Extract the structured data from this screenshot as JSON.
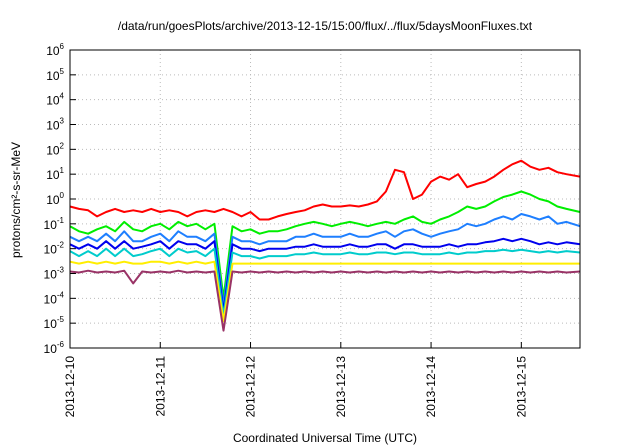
{
  "chart_data": {
    "type": "line",
    "title": "/data/run/goesPlots/archive/2013-12-15/15:00/flux/../flux/5daysMoonFluxes.txt",
    "xlabel": "Coordinated Universal Time (UTC)",
    "ylabel": "protons/cm²-s-sr-MeV",
    "yscale": "log",
    "ylim": [
      1e-06,
      1000000.0
    ],
    "xlim": [
      0,
      5.65
    ],
    "grid": true,
    "legend": "none",
    "x_ticks": [
      {
        "x": 0,
        "label": "2013-12-10"
      },
      {
        "x": 1,
        "label": "2013-12-11"
      },
      {
        "x": 2,
        "label": "2013-12-12"
      },
      {
        "x": 3,
        "label": "2013-12-13"
      },
      {
        "x": 4,
        "label": "2013-12-14"
      },
      {
        "x": 5,
        "label": "2013-12-15"
      }
    ],
    "y_ticks": [
      {
        "exp": -6,
        "label": "10",
        "sup": "-6"
      },
      {
        "exp": -5,
        "label": "10",
        "sup": "-5"
      },
      {
        "exp": -4,
        "label": "10",
        "sup": "-4"
      },
      {
        "exp": -3,
        "label": "10",
        "sup": "-3"
      },
      {
        "exp": -2,
        "label": "10",
        "sup": "-2"
      },
      {
        "exp": -1,
        "label": "10",
        "sup": "-1"
      },
      {
        "exp": 0,
        "label": "10",
        "sup": "0"
      },
      {
        "exp": 1,
        "label": "10",
        "sup": "1"
      },
      {
        "exp": 2,
        "label": "10",
        "sup": "2"
      },
      {
        "exp": 3,
        "label": "10",
        "sup": "3"
      },
      {
        "exp": 4,
        "label": "10",
        "sup": "4"
      },
      {
        "exp": 5,
        "label": "10",
        "sup": "5"
      },
      {
        "exp": 6,
        "label": "10",
        "sup": "6"
      }
    ],
    "series": [
      {
        "color": "#ff0000",
        "x": [
          0,
          0.1,
          0.2,
          0.3,
          0.4,
          0.5,
          0.6,
          0.7,
          0.8,
          0.9,
          1.0,
          1.1,
          1.2,
          1.3,
          1.4,
          1.5,
          1.6,
          1.7,
          1.8,
          1.9,
          2.0,
          2.1,
          2.2,
          2.3,
          2.4,
          2.5,
          2.6,
          2.7,
          2.8,
          2.9,
          3.0,
          3.1,
          3.2,
          3.3,
          3.4,
          3.5,
          3.6,
          3.7,
          3.8,
          3.9,
          4.0,
          4.1,
          4.2,
          4.3,
          4.4,
          4.5,
          4.6,
          4.7,
          4.8,
          4.9,
          5.0,
          5.1,
          5.2,
          5.3,
          5.4,
          5.5,
          5.65
        ],
        "y": [
          0.5,
          0.4,
          0.35,
          0.2,
          0.3,
          0.4,
          0.3,
          0.35,
          0.3,
          0.4,
          0.3,
          0.35,
          0.3,
          0.2,
          0.3,
          0.35,
          0.3,
          0.4,
          0.3,
          0.2,
          0.3,
          0.15,
          0.15,
          0.2,
          0.25,
          0.3,
          0.35,
          0.5,
          0.6,
          0.5,
          0.5,
          0.55,
          0.5,
          0.6,
          0.8,
          2,
          15,
          12,
          1,
          1.5,
          5,
          8,
          6,
          10,
          3,
          4,
          5,
          8,
          15,
          25,
          35,
          20,
          15,
          18,
          12,
          10,
          8
        ]
      },
      {
        "color": "#00ee00",
        "x": [
          0,
          0.1,
          0.2,
          0.3,
          0.4,
          0.5,
          0.6,
          0.7,
          0.8,
          0.9,
          1.0,
          1.1,
          1.2,
          1.3,
          1.4,
          1.5,
          1.6,
          1.7,
          1.8,
          1.9,
          2.0,
          2.1,
          2.2,
          2.3,
          2.4,
          2.5,
          2.6,
          2.7,
          2.8,
          2.9,
          3.0,
          3.1,
          3.2,
          3.3,
          3.4,
          3.5,
          3.6,
          3.7,
          3.8,
          3.9,
          4.0,
          4.1,
          4.2,
          4.3,
          4.4,
          4.5,
          4.6,
          4.7,
          4.8,
          4.9,
          5.0,
          5.1,
          5.2,
          5.3,
          5.4,
          5.5,
          5.65
        ],
        "y": [
          0.08,
          0.05,
          0.04,
          0.06,
          0.08,
          0.05,
          0.12,
          0.06,
          0.05,
          0.08,
          0.1,
          0.06,
          0.12,
          0.08,
          0.1,
          0.06,
          0.1,
          0.0001,
          0.08,
          0.05,
          0.06,
          0.04,
          0.05,
          0.05,
          0.06,
          0.08,
          0.1,
          0.12,
          0.1,
          0.08,
          0.1,
          0.12,
          0.1,
          0.08,
          0.1,
          0.12,
          0.1,
          0.15,
          0.2,
          0.12,
          0.1,
          0.15,
          0.2,
          0.3,
          0.5,
          0.4,
          0.5,
          0.8,
          1.2,
          1.5,
          2,
          1.5,
          1,
          0.8,
          0.5,
          0.4,
          0.3
        ]
      },
      {
        "color": "#1e7fff",
        "x": [
          0,
          0.1,
          0.2,
          0.3,
          0.4,
          0.5,
          0.6,
          0.7,
          0.8,
          0.9,
          1.0,
          1.1,
          1.2,
          1.3,
          1.4,
          1.5,
          1.6,
          1.7,
          1.8,
          1.9,
          2.0,
          2.1,
          2.2,
          2.3,
          2.4,
          2.5,
          2.6,
          2.7,
          2.8,
          2.9,
          3.0,
          3.1,
          3.2,
          3.3,
          3.4,
          3.5,
          3.6,
          3.7,
          3.8,
          3.9,
          4.0,
          4.1,
          4.2,
          4.3,
          4.4,
          4.5,
          4.6,
          4.7,
          4.8,
          4.9,
          5.0,
          5.1,
          5.2,
          5.3,
          5.4,
          5.5,
          5.65
        ],
        "y": [
          0.03,
          0.02,
          0.03,
          0.02,
          0.04,
          0.02,
          0.05,
          0.02,
          0.02,
          0.03,
          0.04,
          0.02,
          0.05,
          0.03,
          0.03,
          0.02,
          0.04,
          5e-05,
          0.03,
          0.02,
          0.02,
          0.015,
          0.02,
          0.02,
          0.02,
          0.03,
          0.03,
          0.04,
          0.03,
          0.03,
          0.03,
          0.04,
          0.03,
          0.03,
          0.04,
          0.05,
          0.03,
          0.05,
          0.06,
          0.04,
          0.03,
          0.04,
          0.05,
          0.06,
          0.1,
          0.08,
          0.1,
          0.15,
          0.2,
          0.15,
          0.25,
          0.2,
          0.15,
          0.2,
          0.1,
          0.12,
          0.08
        ]
      },
      {
        "color": "#0000ee",
        "x": [
          0,
          0.1,
          0.2,
          0.3,
          0.4,
          0.5,
          0.6,
          0.7,
          0.8,
          0.9,
          1.0,
          1.1,
          1.2,
          1.3,
          1.4,
          1.5,
          1.6,
          1.7,
          1.8,
          1.9,
          2.0,
          2.1,
          2.2,
          2.3,
          2.4,
          2.5,
          2.6,
          2.7,
          2.8,
          2.9,
          3.0,
          3.1,
          3.2,
          3.3,
          3.4,
          3.5,
          3.6,
          3.7,
          3.8,
          3.9,
          4.0,
          4.1,
          4.2,
          4.3,
          4.4,
          4.5,
          4.6,
          4.7,
          4.8,
          4.9,
          5.0,
          5.1,
          5.2,
          5.3,
          5.4,
          5.5,
          5.65
        ],
        "y": [
          0.015,
          0.01,
          0.015,
          0.01,
          0.02,
          0.01,
          0.02,
          0.01,
          0.012,
          0.015,
          0.02,
          0.01,
          0.02,
          0.015,
          0.015,
          0.01,
          0.02,
          3e-05,
          0.015,
          0.01,
          0.01,
          0.008,
          0.01,
          0.01,
          0.01,
          0.012,
          0.012,
          0.015,
          0.012,
          0.012,
          0.012,
          0.015,
          0.012,
          0.012,
          0.015,
          0.015,
          0.01,
          0.015,
          0.015,
          0.012,
          0.012,
          0.012,
          0.015,
          0.012,
          0.015,
          0.015,
          0.018,
          0.02,
          0.025,
          0.02,
          0.025,
          0.02,
          0.015,
          0.018,
          0.015,
          0.018,
          0.015
        ]
      },
      {
        "color": "#00cccc",
        "x": [
          0,
          0.1,
          0.2,
          0.3,
          0.4,
          0.5,
          0.6,
          0.7,
          0.8,
          0.9,
          1.0,
          1.1,
          1.2,
          1.3,
          1.4,
          1.5,
          1.6,
          1.7,
          1.8,
          1.9,
          2.0,
          2.1,
          2.2,
          2.3,
          2.4,
          2.5,
          2.6,
          2.7,
          2.8,
          2.9,
          3.0,
          3.1,
          3.2,
          3.3,
          3.4,
          3.5,
          3.6,
          3.7,
          3.8,
          3.9,
          4.0,
          4.1,
          4.2,
          4.3,
          4.4,
          4.5,
          4.6,
          4.7,
          4.8,
          4.9,
          5.0,
          5.1,
          5.2,
          5.3,
          5.4,
          5.5,
          5.65
        ],
        "y": [
          0.008,
          0.005,
          0.008,
          0.005,
          0.01,
          0.005,
          0.01,
          0.005,
          0.006,
          0.008,
          0.01,
          0.005,
          0.01,
          0.007,
          0.008,
          0.005,
          0.01,
          2e-05,
          0.007,
          0.005,
          0.005,
          0.004,
          0.005,
          0.005,
          0.005,
          0.006,
          0.006,
          0.007,
          0.006,
          0.006,
          0.006,
          0.007,
          0.006,
          0.006,
          0.007,
          0.007,
          0.006,
          0.007,
          0.007,
          0.006,
          0.006,
          0.006,
          0.007,
          0.006,
          0.007,
          0.007,
          0.008,
          0.008,
          0.009,
          0.008,
          0.009,
          0.008,
          0.007,
          0.008,
          0.007,
          0.008,
          0.007
        ]
      },
      {
        "color": "#ffee00",
        "x": [
          0,
          0.1,
          0.2,
          0.3,
          0.4,
          0.5,
          0.6,
          0.7,
          0.8,
          0.9,
          1.0,
          1.1,
          1.2,
          1.3,
          1.4,
          1.5,
          1.6,
          1.7,
          1.8,
          1.9,
          2.0,
          2.1,
          2.2,
          2.3,
          2.4,
          2.5,
          2.6,
          2.7,
          2.8,
          2.9,
          3.0,
          3.1,
          3.2,
          3.3,
          3.4,
          3.5,
          3.6,
          3.7,
          3.8,
          3.9,
          4.0,
          4.1,
          4.2,
          4.3,
          4.4,
          4.5,
          4.6,
          4.7,
          4.8,
          4.9,
          5.0,
          5.1,
          5.2,
          5.3,
          5.4,
          5.5,
          5.65
        ],
        "y": [
          0.003,
          0.0025,
          0.003,
          0.0025,
          0.003,
          0.0025,
          0.003,
          0.0025,
          0.0025,
          0.003,
          0.003,
          0.0025,
          0.003,
          0.0025,
          0.003,
          0.0025,
          0.003,
          1.2e-05,
          0.0025,
          0.0025,
          0.0025,
          0.0025,
          0.0025,
          0.0025,
          0.0025,
          0.0025,
          0.0025,
          0.0025,
          0.0025,
          0.0025,
          0.0025,
          0.0025,
          0.0025,
          0.0025,
          0.0025,
          0.0025,
          0.0025,
          0.0025,
          0.0025,
          0.0025,
          0.0025,
          0.0025,
          0.0025,
          0.0025,
          0.0025,
          0.0025,
          0.0025,
          0.0025,
          0.0025,
          0.0025,
          0.0025,
          0.0025,
          0.0025,
          0.0025,
          0.0025,
          0.0025,
          0.0025
        ]
      },
      {
        "color": "#993366",
        "x": [
          0,
          0.1,
          0.2,
          0.3,
          0.4,
          0.5,
          0.6,
          0.7,
          0.8,
          0.9,
          1.0,
          1.1,
          1.2,
          1.3,
          1.4,
          1.5,
          1.6,
          1.7,
          1.8,
          1.9,
          2.0,
          2.1,
          2.2,
          2.3,
          2.4,
          2.5,
          2.6,
          2.7,
          2.8,
          2.9,
          3.0,
          3.1,
          3.2,
          3.3,
          3.4,
          3.5,
          3.6,
          3.7,
          3.8,
          3.9,
          4.0,
          4.1,
          4.2,
          4.3,
          4.4,
          4.5,
          4.6,
          4.7,
          4.8,
          4.9,
          5.0,
          5.1,
          5.2,
          5.3,
          5.4,
          5.5,
          5.65
        ],
        "y": [
          0.0012,
          0.0011,
          0.0013,
          0.0011,
          0.0012,
          0.0011,
          0.0013,
          0.0004,
          0.0012,
          0.0011,
          0.0012,
          0.0011,
          0.0013,
          0.0011,
          0.0012,
          0.0011,
          0.0012,
          5e-06,
          0.0012,
          0.0011,
          0.0012,
          0.0011,
          0.0012,
          0.0011,
          0.0012,
          0.0011,
          0.0012,
          0.0011,
          0.0012,
          0.0011,
          0.0012,
          0.0011,
          0.0012,
          0.0011,
          0.0012,
          0.0011,
          0.0012,
          0.0011,
          0.0012,
          0.0011,
          0.0012,
          0.0011,
          0.0012,
          0.0011,
          0.0012,
          0.0011,
          0.0012,
          0.0011,
          0.0012,
          0.0011,
          0.0012,
          0.0011,
          0.0012,
          0.0011,
          0.0012,
          0.0011,
          0.0012
        ]
      }
    ]
  }
}
